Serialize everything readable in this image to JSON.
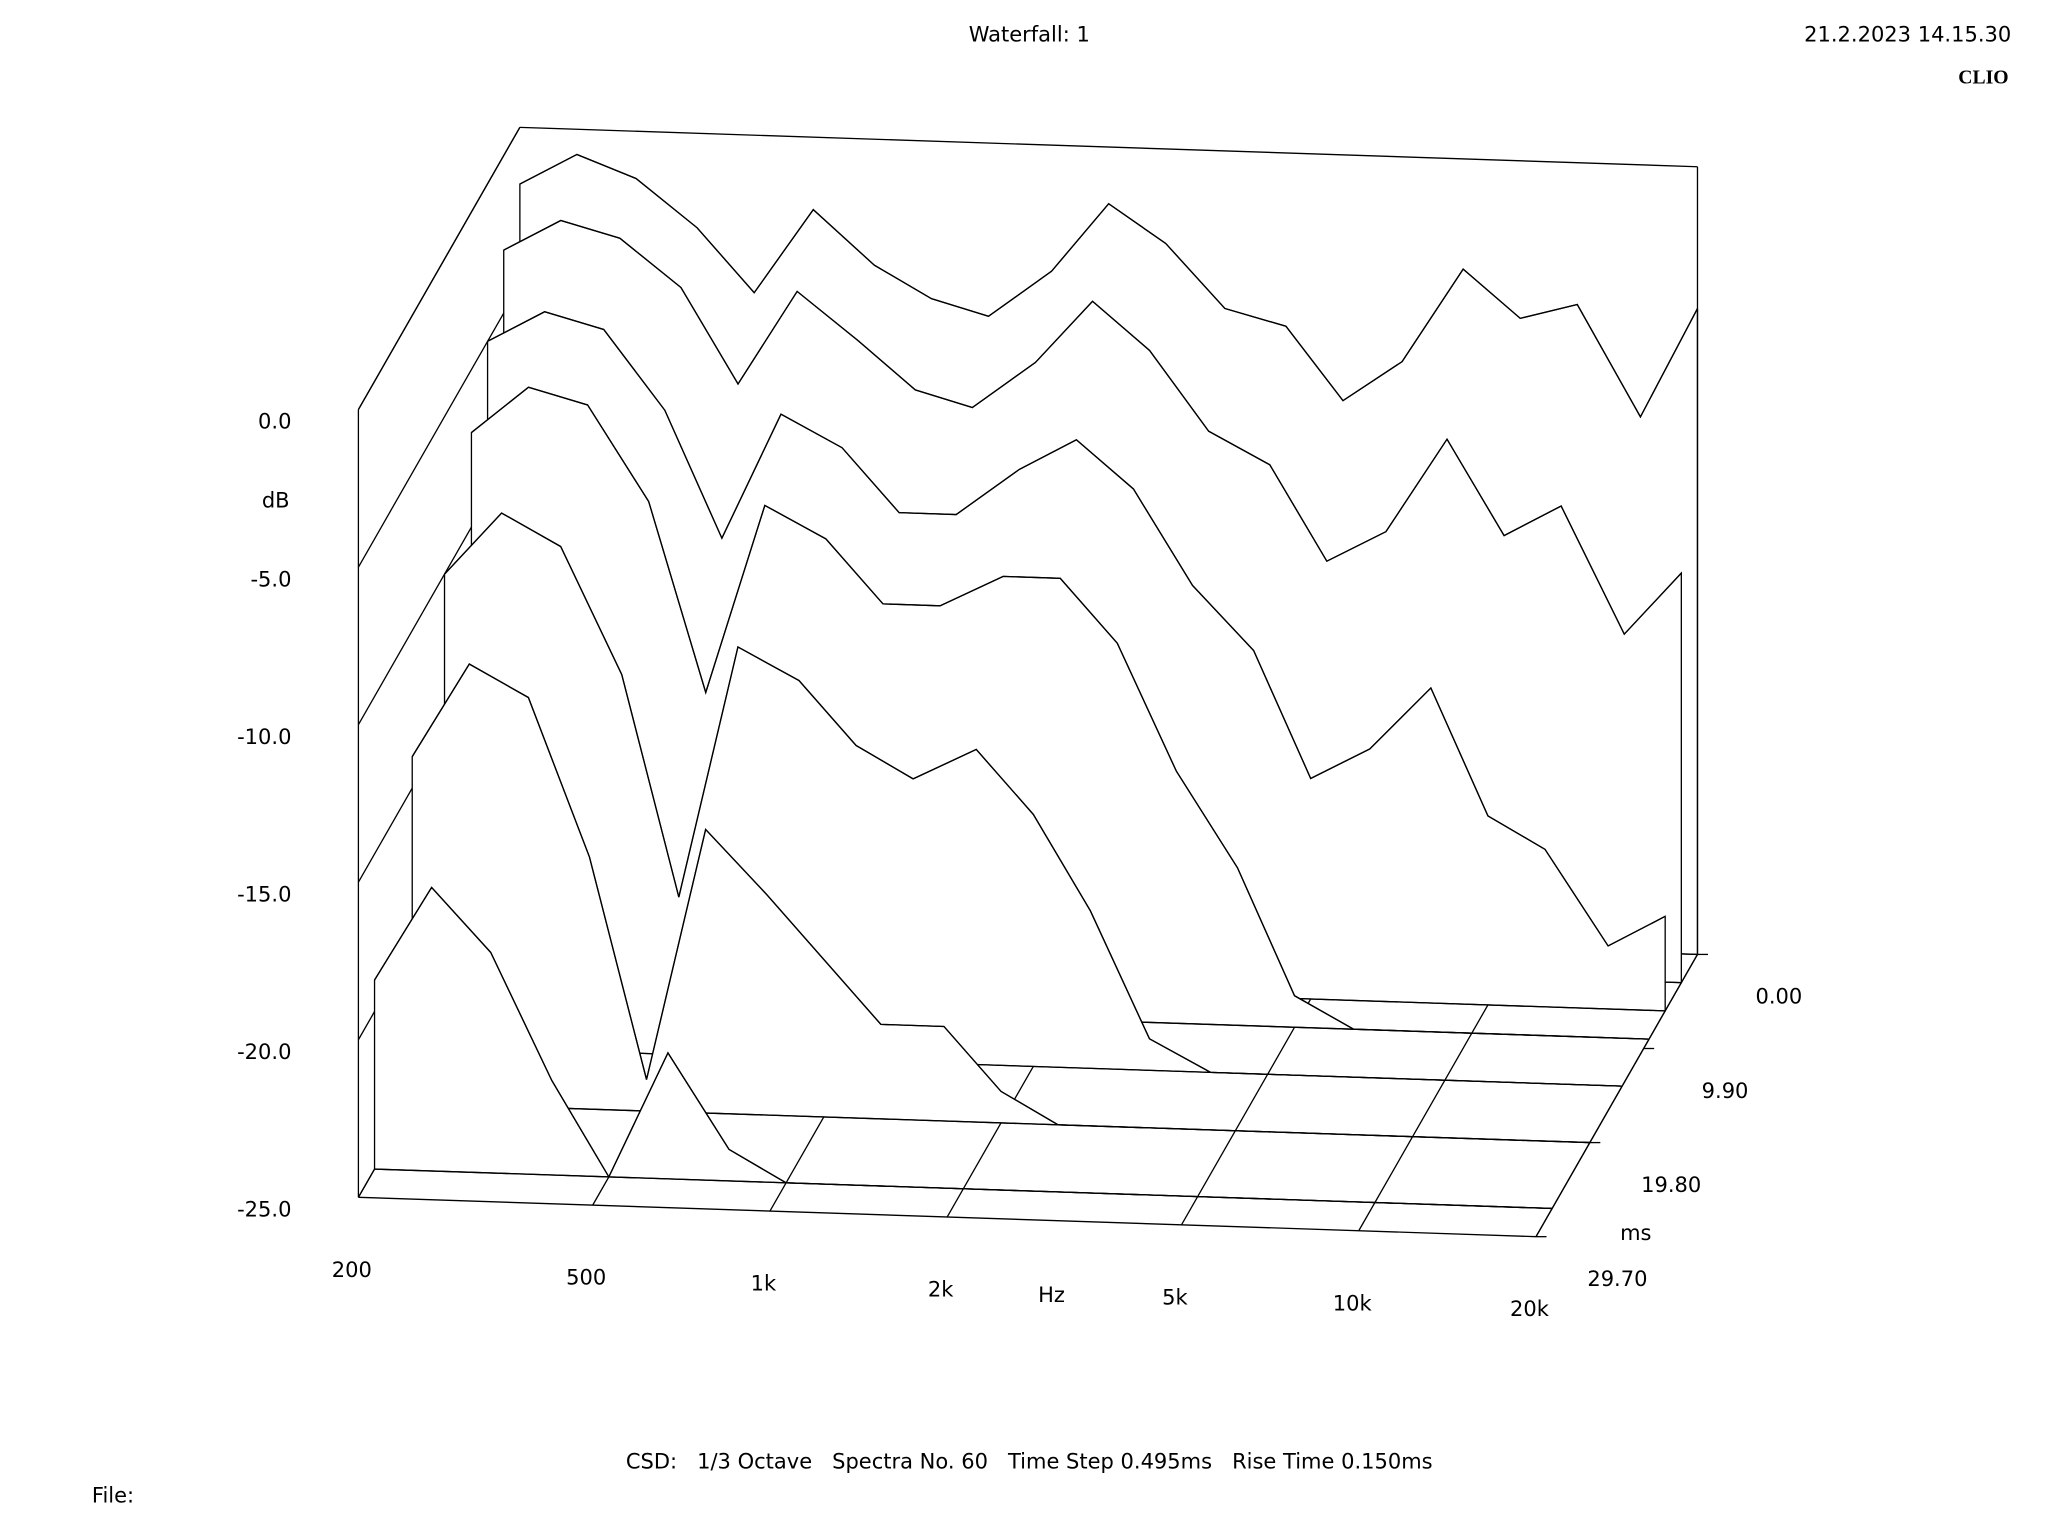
{
  "chart_data": {
    "type": "waterfall",
    "title": "Waterfall: 1",
    "date": "21.2.2023 14.15.30",
    "brand": "CLIO",
    "footer": "CSD:   1/3 Octave   Spectra No. 60   Time Step 0.495ms   Rise Time 0.150ms",
    "file": "File:",
    "x_label": "Hz",
    "y_label": "dB",
    "z_label": "ms",
    "x_log": true,
    "xlim": [
      200,
      20000
    ],
    "xticks": [
      200,
      500,
      {
        "value": 1000,
        "label": "1k"
      },
      {
        "value": 2000,
        "label": "2k"
      },
      {
        "value": 5000,
        "label": "5k"
      },
      {
        "value": 10000,
        "label": "10k"
      },
      {
        "value": 20000,
        "label": "20k"
      }
    ],
    "ylim": [
      -25,
      0
    ],
    "yticks": [
      {
        "value": 0,
        "label": "0.0"
      },
      {
        "value": -5,
        "label": "-5.0"
      },
      {
        "value": -10,
        "label": "-10.0"
      },
      {
        "value": -15,
        "label": "-15.0"
      },
      {
        "value": -20,
        "label": "-20.0"
      },
      {
        "value": -25,
        "label": "-25.0"
      }
    ],
    "zlim": [
      0,
      29.7
    ],
    "zticks": [
      {
        "value": 0,
        "label": "0.00"
      },
      {
        "value": 9.9,
        "label": "9.90"
      },
      {
        "value": 19.8,
        "label": "19.80"
      },
      {
        "value": 29.7,
        "label": "29.70"
      }
    ],
    "color": "#000000",
    "x": [
      200,
      250,
      315,
      400,
      500,
      630,
      800,
      1000,
      1250,
      1600,
      2000,
      2500,
      3150,
      4000,
      5000,
      6300,
      8000,
      10000,
      12500,
      16000,
      20000
    ],
    "series": [
      {
        "z": 0,
        "values": [
          -1.8,
          -0.8,
          -1.5,
          -3,
          -5,
          -2.3,
          -4,
          -5,
          -5.5,
          -4,
          -1.8,
          -3,
          -5,
          -5.5,
          -7.8,
          -6.5,
          -3.5,
          -5,
          -4.5,
          -8,
          -4.5
        ]
      },
      {
        "z": 2.97,
        "values": [
          -3,
          -2,
          -2.5,
          -4,
          -7,
          -4,
          -5.5,
          -7,
          -7.5,
          -6,
          -4,
          -5.5,
          -8,
          -9,
          -12,
          -11,
          -8,
          -11,
          -10,
          -14,
          -12
        ]
      },
      {
        "z": 5.94,
        "values": [
          -5,
          -4,
          -4.5,
          -7,
          -11,
          -7,
          -8,
          -10,
          -10,
          -8.5,
          -7.5,
          -9,
          -12,
          -14,
          -18,
          -17,
          -15,
          -19,
          -20,
          -23,
          -22
        ]
      },
      {
        "z": 8.91,
        "values": [
          -7,
          -5.5,
          -6,
          -9,
          -15,
          -9,
          -10,
          -12,
          -12,
          -11,
          -11,
          -13,
          -17,
          -20,
          -24,
          -25,
          -25,
          -25,
          -25,
          -25,
          -25
        ]
      },
      {
        "z": 13.86,
        "values": [
          -10,
          -8,
          -9,
          -13,
          -20,
          -12,
          -13,
          -15,
          -16,
          -15,
          -17,
          -20,
          -24,
          -25,
          -25,
          -25,
          -25,
          -25,
          -25,
          -25,
          -25
        ]
      },
      {
        "z": 19.8,
        "values": [
          -14,
          -11,
          -12,
          -17,
          -24,
          -16,
          -18,
          -20,
          -22,
          -22,
          -24,
          -25,
          -25,
          -25,
          -25,
          -25,
          -25,
          -25,
          -25,
          -25,
          -25
        ]
      },
      {
        "z": 26.73,
        "values": [
          -19,
          -16,
          -18,
          -22,
          -25,
          -21,
          -24,
          -25,
          -25,
          -25,
          -25,
          -25,
          -25,
          -25,
          -25,
          -25,
          -25,
          -25,
          -25,
          -25,
          -25
        ]
      }
    ]
  }
}
